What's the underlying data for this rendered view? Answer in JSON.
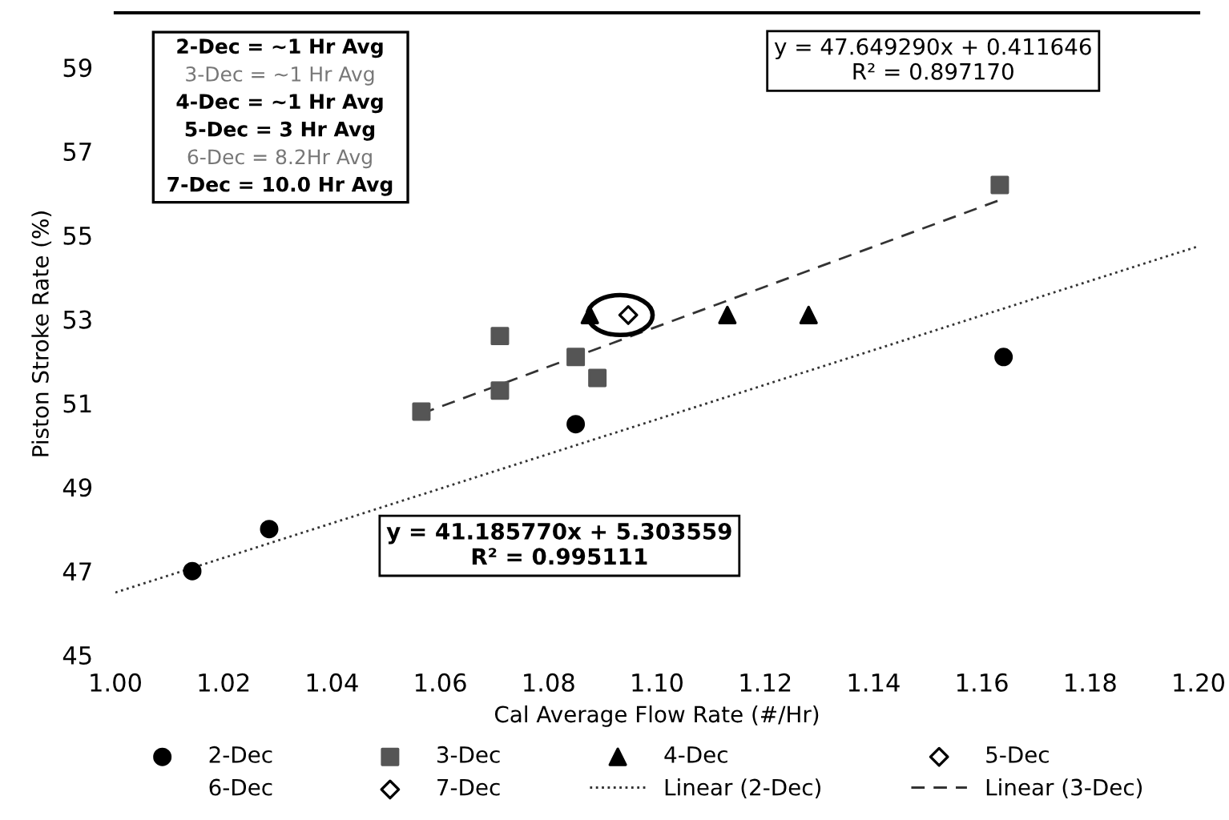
{
  "chart_data": {
    "type": "scatter",
    "xlabel": "Cal Average Flow Rate (#/Hr)",
    "ylabel": "Piston Stroke Rate (%)",
    "xlim": [
      1.0,
      1.2
    ],
    "xticks": [
      {
        "value": 1.0,
        "label": "1.00"
      },
      {
        "value": 1.02,
        "label": "1.02"
      },
      {
        "value": 1.04,
        "label": "1.04"
      },
      {
        "value": 1.06,
        "label": "1.06"
      },
      {
        "value": 1.08,
        "label": "1.08"
      },
      {
        "value": 1.1,
        "label": "1.10"
      },
      {
        "value": 1.12,
        "label": "1.12"
      },
      {
        "value": 1.14,
        "label": "1.14"
      },
      {
        "value": 1.16,
        "label": "1.16"
      },
      {
        "value": 1.18,
        "label": "1.18"
      },
      {
        "value": 1.2,
        "label": "1.20"
      }
    ],
    "ylim": [
      45,
      60.3
    ],
    "yticks": [
      45,
      47,
      49,
      51,
      53,
      55,
      57,
      59
    ],
    "grid": false,
    "legend": "bottom",
    "series": [
      {
        "name": "2-Dec",
        "color": "#000000",
        "marker": "circle",
        "x": [
          1.0142,
          1.0284,
          1.085,
          1.164
        ],
        "values": [
          47.0,
          48.0,
          50.5,
          52.1
        ]
      },
      {
        "name": "3-Dec",
        "color": "#555555",
        "marker": "square",
        "x": [
          1.0565,
          1.071,
          1.071,
          1.085,
          1.089,
          1.1633
        ],
        "values": [
          50.8,
          52.6,
          51.3,
          52.1,
          51.6,
          56.2
        ]
      },
      {
        "name": "4-Dec",
        "color": "#000000",
        "marker": "triangle",
        "x": [
          1.0876,
          1.113,
          1.128
        ],
        "values": [
          53.1,
          53.1,
          53.1
        ]
      },
      {
        "name": "5-Dec",
        "color": "#000000",
        "marker": "diamond"
      },
      {
        "name": "6-Dec",
        "marker": "none"
      },
      {
        "name": "7-Dec",
        "color": "#000000",
        "marker": "diamond",
        "x": [
          1.0947
        ],
        "values": [
          53.1
        ]
      },
      {
        "name": "Linear (2-Dec)",
        "type": "line",
        "line_style": "dotted",
        "color": "#333333",
        "x": [
          1.0,
          1.2
        ],
        "values": [
          46.49,
          54.74
        ]
      },
      {
        "name": "Linear (3-Dec)",
        "type": "line",
        "line_style": "dashed",
        "color": "#333333",
        "x": [
          1.0565,
          1.1633
        ],
        "values": [
          50.75,
          55.84
        ]
      }
    ],
    "annotations": [
      "2-Dec = ~1 Hr Avg",
      "3-Dec = ~1 Hr Avg",
      "4-Dec = ~1 Hr Avg",
      "5-Dec = 3 Hr Avg",
      "6-Dec = 8.2Hr Avg",
      "7-Dec = 10.0 Hr Avg",
      "y = 47.649290x + 0.411646\nR² = 0.897170",
      "y = 41.185770x + 5.303559\nR² = 0.995111"
    ]
  }
}
